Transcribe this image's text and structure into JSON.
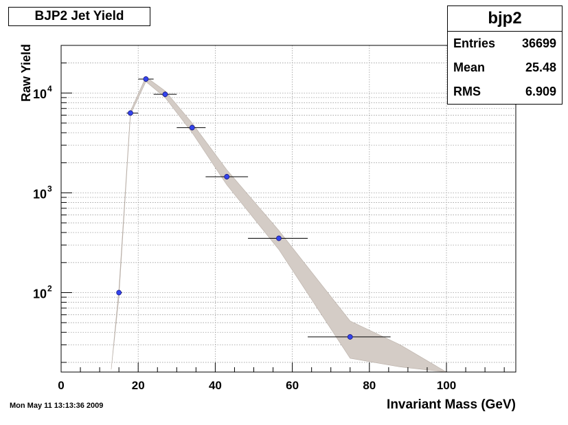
{
  "title": "BJP2 Jet Yield",
  "stats": {
    "name": "bjp2",
    "rows": [
      {
        "label": "Entries",
        "value": "36699"
      },
      {
        "label": "Mean",
        "value": "25.48"
      },
      {
        "label": "RMS",
        "value": "6.909"
      }
    ]
  },
  "datestamp": "Mon May 11 13:13:36 2009",
  "chart_data": {
    "type": "scatter",
    "title": "BJP2 Jet Yield",
    "xlabel": "Invariant Mass (GeV)",
    "ylabel": "Raw Yield",
    "xlim": [
      0,
      118
    ],
    "ylim": [
      16,
      30000
    ],
    "yscale": "log",
    "grid": true,
    "x_ticks": [
      0,
      20,
      40,
      60,
      80,
      100
    ],
    "y_ticks": [
      {
        "value": 100,
        "label": "10",
        "exp": "2"
      },
      {
        "value": 1000,
        "label": "10",
        "exp": "3"
      },
      {
        "value": 10000,
        "label": "10",
        "exp": "4"
      }
    ],
    "points": [
      {
        "x": 15.0,
        "y": 100,
        "xlo": 14.5,
        "xhi": 15.8
      },
      {
        "x": 18.0,
        "y": 6300,
        "xlo": 17.0,
        "xhi": 20.0
      },
      {
        "x": 22.0,
        "y": 13800,
        "xlo": 20.0,
        "xhi": 24.0
      },
      {
        "x": 27.0,
        "y": 9700,
        "xlo": 24.0,
        "xhi": 30.0
      },
      {
        "x": 34.0,
        "y": 4500,
        "xlo": 30.0,
        "xhi": 37.5
      },
      {
        "x": 43.0,
        "y": 1450,
        "xlo": 37.5,
        "xhi": 48.5
      },
      {
        "x": 56.5,
        "y": 350,
        "xlo": 48.5,
        "xhi": 64.0
      },
      {
        "x": 75.0,
        "y": 36,
        "xlo": 64.0,
        "xhi": 85.5
      }
    ],
    "band": {
      "x": [
        13,
        15,
        18,
        22,
        27,
        34,
        43,
        56.5,
        75,
        88,
        100
      ],
      "low": [
        17,
        90,
        6100,
        13000,
        9000,
        4000,
        1200,
        270,
        22,
        18,
        16
      ],
      "high": [
        17,
        110,
        6600,
        14500,
        10500,
        5000,
        1700,
        420,
        52,
        30,
        16
      ]
    },
    "colors": {
      "marker": "#3344ee",
      "band": "#d4ccc6",
      "grid": "#9a9a9a"
    }
  }
}
